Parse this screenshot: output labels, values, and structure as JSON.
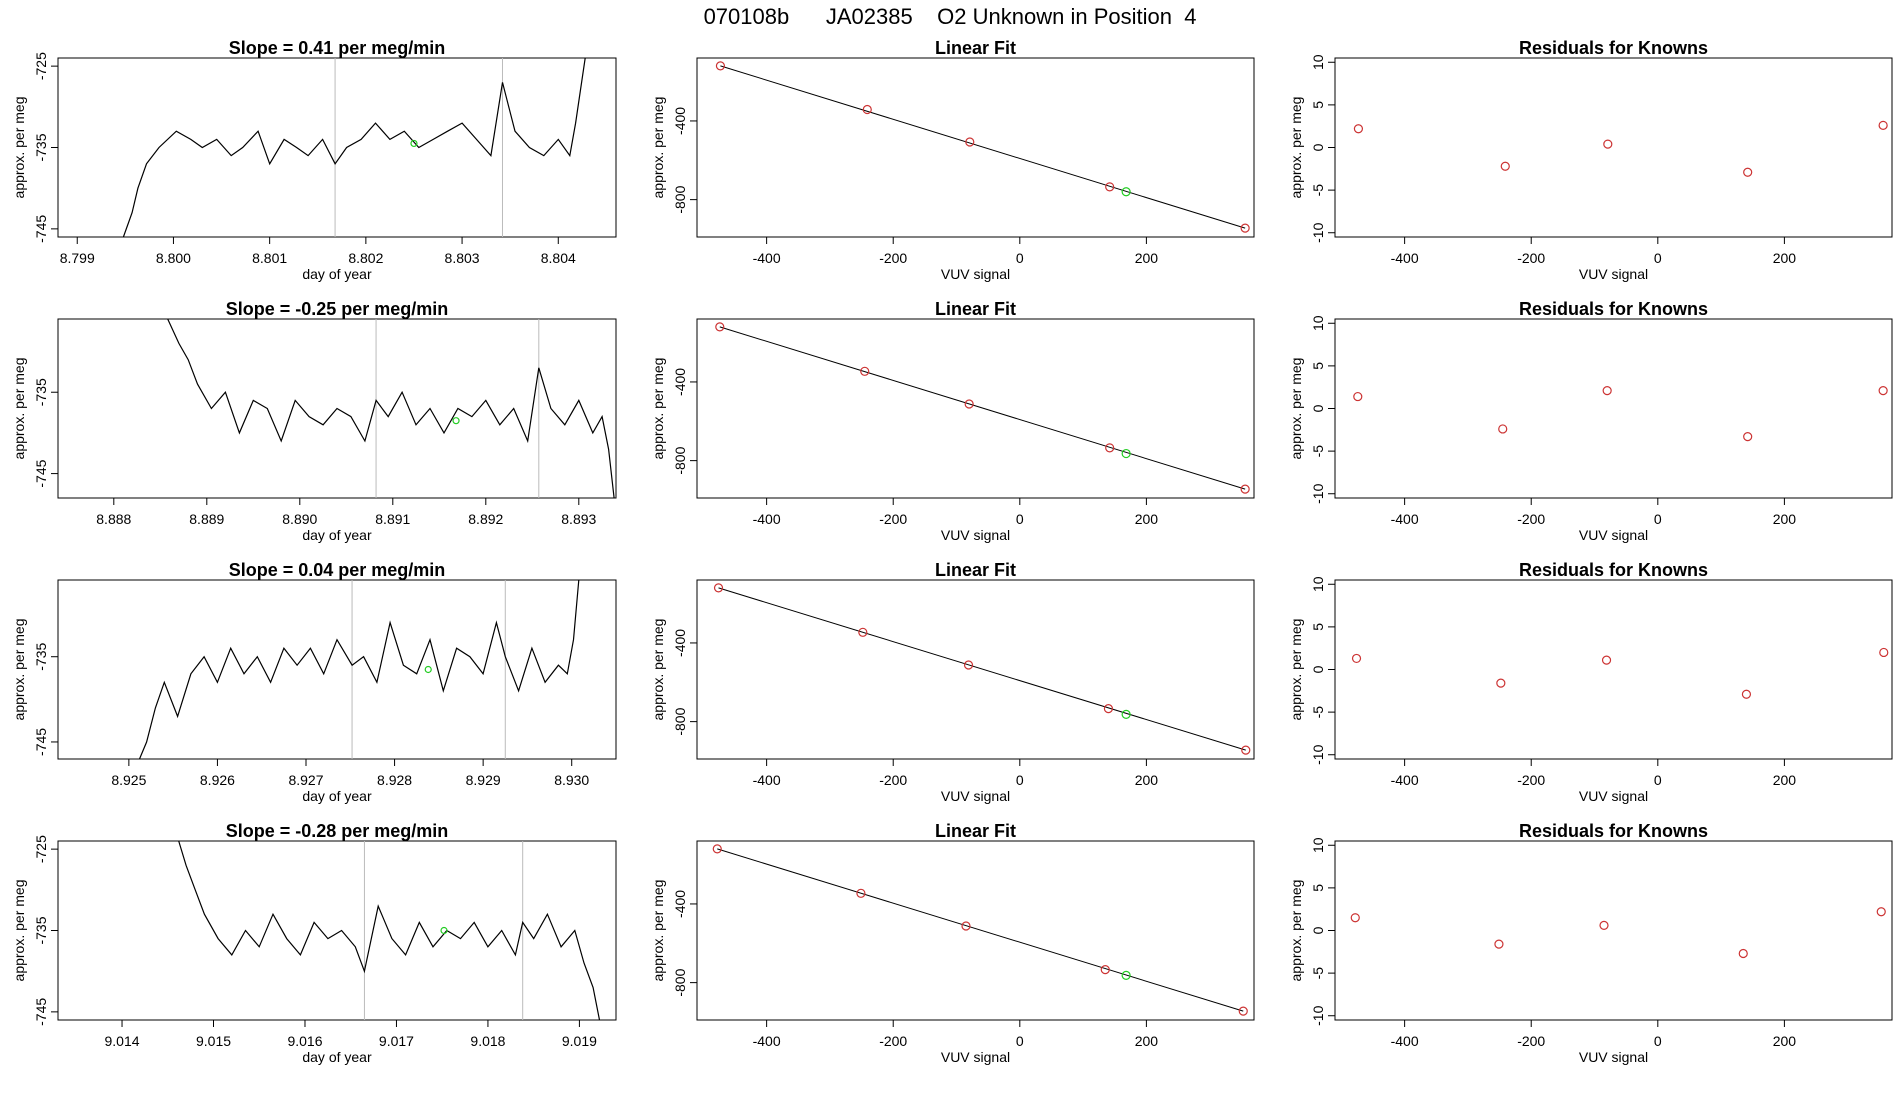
{
  "header": {
    "title": "070108b      JA02385    O2 Unknown in Position  4"
  },
  "colors": {
    "known": "#cc3333",
    "unknown": "#22cc22",
    "line": "#000000",
    "vline": "#bbbbbb"
  },
  "chart_data": [
    {
      "type": "line",
      "row": 1,
      "title": "Slope =  0.41  per meg/min",
      "xlabel": "day of year",
      "ylabel": "approx. per meg",
      "xticks": [
        "8.799",
        "8.800",
        "8.801",
        "8.802",
        "8.803",
        "8.804"
      ],
      "yticks": [
        "-725",
        "-735",
        "-745"
      ],
      "xlim": [
        8.7988,
        8.8046
      ],
      "ylim": [
        -746,
        -724
      ],
      "vlines": [
        8.80168,
        8.80342
      ],
      "series": [
        {
          "x": [
            8.79948,
            8.79957,
            8.79963,
            8.79972,
            8.79985,
            8.80003,
            8.80018,
            8.8003,
            8.80045,
            8.8006,
            8.80072,
            8.80088,
            8.801,
            8.80115,
            8.80128,
            8.8014,
            8.80155,
            8.80168,
            8.8018,
            8.80195,
            8.8021,
            8.80225,
            8.8024,
            8.80255,
            8.8027,
            8.80285,
            8.803,
            8.80315,
            8.8033,
            8.80342,
            8.80355,
            8.8037,
            8.80385,
            8.804,
            8.80412,
            8.80418,
            8.80423,
            8.80428
          ],
          "y": [
            -746,
            -743,
            -740,
            -737,
            -735,
            -733,
            -734,
            -735,
            -734,
            -736,
            -735,
            -733,
            -737,
            -734,
            -735,
            -736,
            -734,
            -737,
            -735,
            -734,
            -732,
            -734,
            -733,
            -735,
            -734,
            -733,
            -732,
            -734,
            -736,
            -727,
            -733,
            -735,
            -736,
            -734,
            -736,
            -732,
            -728,
            -724
          ]
        }
      ],
      "unknown_point": {
        "x": 8.8025,
        "y": -734.5
      }
    },
    {
      "type": "scatter",
      "row": 1,
      "title": "Linear Fit",
      "xlabel": "VUV signal",
      "ylabel": "approx. per meg",
      "xticks": [
        "-400",
        "-200",
        "0",
        "200"
      ],
      "yticks": [
        "-400",
        "-800"
      ],
      "xlim": [
        -510,
        370
      ],
      "ylim": [
        -990,
        -80
      ],
      "knowns": {
        "x": [
          -473,
          -241,
          -79,
          142,
          356
        ],
        "y": [
          -120,
          -342,
          -507,
          -735,
          -945
        ]
      },
      "unknown": {
        "x": 168,
        "y": -760
      },
      "fit": {
        "x": [
          -473,
          356
        ],
        "y": [
          -120,
          -945
        ]
      }
    },
    {
      "type": "scatter",
      "row": 1,
      "title": "Residuals for Knowns",
      "xlabel": "VUV signal",
      "ylabel": "approx. per meg",
      "xticks": [
        "-400",
        "-200",
        "0",
        "200"
      ],
      "yticks": [
        "10",
        "5",
        "0",
        "-5",
        "-10"
      ],
      "xlim": [
        -510,
        370
      ],
      "ylim": [
        -10.5,
        10.5
      ],
      "points": {
        "x": [
          -473,
          -241,
          -79,
          142,
          356
        ],
        "y": [
          2.2,
          -2.2,
          0.4,
          -2.9,
          2.6
        ]
      }
    },
    {
      "type": "line",
      "row": 2,
      "title": "Slope =  -0.25  per meg/min",
      "xlabel": "day of year",
      "ylabel": "approx. per meg",
      "xticks": [
        "8.888",
        "8.889",
        "8.890",
        "8.891",
        "8.892",
        "8.893"
      ],
      "yticks": [
        "-735",
        "-745"
      ],
      "xlim": [
        8.8874,
        8.8934
      ],
      "ylim": [
        -748,
        -726
      ],
      "vlines": [
        8.89082,
        8.89257
      ],
      "series": [
        {
          "x": [
            8.88858,
            8.8887,
            8.8888,
            8.8889,
            8.88905,
            8.8892,
            8.88935,
            8.8895,
            8.88965,
            8.8898,
            8.88995,
            8.8901,
            8.89025,
            8.8904,
            8.89055,
            8.8907,
            8.89082,
            8.89095,
            8.8911,
            8.89125,
            8.8914,
            8.89155,
            8.8917,
            8.89185,
            8.892,
            8.89215,
            8.8923,
            8.89245,
            8.89257,
            8.8927,
            8.89285,
            8.893,
            8.89315,
            8.89325,
            8.89332,
            8.89338
          ],
          "y": [
            -726,
            -729,
            -731,
            -734,
            -737,
            -735,
            -740,
            -736,
            -737,
            -741,
            -736,
            -738,
            -739,
            -737,
            -738,
            -741,
            -736,
            -738,
            -735,
            -739,
            -737,
            -740,
            -737,
            -738,
            -736,
            -739,
            -737,
            -741,
            -732,
            -737,
            -739,
            -736,
            -740,
            -738,
            -742,
            -748
          ]
        }
      ],
      "unknown_point": {
        "x": 8.89168,
        "y": -738.5
      }
    },
    {
      "type": "scatter",
      "row": 2,
      "title": "Linear Fit",
      "xlabel": "VUV signal",
      "ylabel": "approx. per meg",
      "xticks": [
        "-400",
        "-200",
        "0",
        "200"
      ],
      "yticks": [
        "-400",
        "-800"
      ],
      "xlim": [
        -510,
        370
      ],
      "ylim": [
        -990,
        -80
      ],
      "knowns": {
        "x": [
          -474,
          -245,
          -80,
          142,
          356
        ],
        "y": [
          -120,
          -346,
          -512,
          -735,
          -945
        ]
      },
      "unknown": {
        "x": 168,
        "y": -764
      },
      "fit": {
        "x": [
          -474,
          356
        ],
        "y": [
          -120,
          -945
        ]
      }
    },
    {
      "type": "scatter",
      "row": 2,
      "title": "Residuals for Knowns",
      "xlabel": "VUV signal",
      "ylabel": "approx. per meg",
      "xticks": [
        "-400",
        "-200",
        "0",
        "200"
      ],
      "yticks": [
        "10",
        "5",
        "0",
        "-5",
        "-10"
      ],
      "xlim": [
        -510,
        370
      ],
      "ylim": [
        -10.5,
        10.5
      ],
      "points": {
        "x": [
          -474,
          -245,
          -80,
          142,
          356
        ],
        "y": [
          1.4,
          -2.4,
          2.1,
          -3.3,
          2.1
        ]
      }
    },
    {
      "type": "line",
      "row": 3,
      "title": "Slope =  0.04  per meg/min",
      "xlabel": "day of year",
      "ylabel": "approx. per meg",
      "xticks": [
        "8.925",
        "8.926",
        "8.927",
        "8.928",
        "8.929",
        "8.930"
      ],
      "yticks": [
        "-735",
        "-745"
      ],
      "xlim": [
        8.9242,
        8.9305
      ],
      "ylim": [
        -747,
        -726
      ],
      "vlines": [
        8.92752,
        8.92925
      ],
      "series": [
        {
          "x": [
            8.92512,
            8.9252,
            8.9253,
            8.9254,
            8.92555,
            8.9257,
            8.92585,
            8.926,
            8.92615,
            8.9263,
            8.92645,
            8.9266,
            8.92675,
            8.9269,
            8.92705,
            8.9272,
            8.92735,
            8.92752,
            8.92765,
            8.9278,
            8.92795,
            8.9281,
            8.92825,
            8.9284,
            8.92855,
            8.9287,
            8.92885,
            8.929,
            8.92915,
            8.92925,
            8.9294,
            8.92955,
            8.9297,
            8.92985,
            8.92995,
            8.93002,
            8.93008
          ],
          "y": [
            -747,
            -745,
            -741,
            -738,
            -742,
            -737,
            -735,
            -738,
            -734,
            -737,
            -735,
            -738,
            -734,
            -736,
            -734,
            -737,
            -733,
            -736,
            -735,
            -738,
            -731,
            -736,
            -737,
            -733,
            -739,
            -734,
            -735,
            -737,
            -731,
            -735,
            -739,
            -734,
            -738,
            -736,
            -737,
            -733,
            -726
          ]
        }
      ],
      "unknown_point": {
        "x": 8.92838,
        "y": -736.5
      }
    },
    {
      "type": "scatter",
      "row": 3,
      "title": "Linear Fit",
      "xlabel": "VUV signal",
      "ylabel": "approx. per meg",
      "xticks": [
        "-400",
        "-200",
        "0",
        "200"
      ],
      "yticks": [
        "-400",
        "-800"
      ],
      "xlim": [
        -510,
        370
      ],
      "ylim": [
        -990,
        -80
      ],
      "knowns": {
        "x": [
          -476,
          -248,
          -81,
          140,
          357
        ],
        "y": [
          -120,
          -346,
          -512,
          -734,
          -945
        ]
      },
      "unknown": {
        "x": 168,
        "y": -763
      },
      "fit": {
        "x": [
          -476,
          357
        ],
        "y": [
          -120,
          -945
        ]
      }
    },
    {
      "type": "scatter",
      "row": 3,
      "title": "Residuals for Knowns",
      "xlabel": "VUV signal",
      "ylabel": "approx. per meg",
      "xticks": [
        "-400",
        "-200",
        "0",
        "200"
      ],
      "yticks": [
        "10",
        "5",
        "0",
        "-5",
        "-10"
      ],
      "xlim": [
        -510,
        370
      ],
      "ylim": [
        -10.5,
        10.5
      ],
      "points": {
        "x": [
          -476,
          -248,
          -81,
          140,
          357
        ],
        "y": [
          1.3,
          -1.6,
          1.1,
          -2.9,
          2.0
        ]
      }
    },
    {
      "type": "line",
      "row": 4,
      "title": "Slope =  -0.28  per meg/min",
      "xlabel": "day of year",
      "ylabel": "approx. per meg",
      "xticks": [
        "9.014",
        "9.015",
        "9.016",
        "9.017",
        "9.018",
        "9.019"
      ],
      "yticks": [
        "-725",
        "-735",
        "-745"
      ],
      "xlim": [
        9.0133,
        9.0194
      ],
      "ylim": [
        -746,
        -724
      ],
      "vlines": [
        9.01665,
        9.01838
      ],
      "series": [
        {
          "x": [
            9.01462,
            9.0147,
            9.0148,
            9.0149,
            9.01505,
            9.0152,
            9.01535,
            9.0155,
            9.01565,
            9.0158,
            9.01595,
            9.0161,
            9.01625,
            9.0164,
            9.01655,
            9.01665,
            9.0168,
            9.01695,
            9.0171,
            9.01725,
            9.0174,
            9.01755,
            9.0177,
            9.01785,
            9.018,
            9.01815,
            9.0183,
            9.01838,
            9.0185,
            9.01865,
            9.0188,
            9.01895,
            9.01905,
            9.01915,
            9.01922
          ],
          "y": [
            -724,
            -727,
            -730,
            -733,
            -736,
            -738,
            -735,
            -737,
            -733,
            -736,
            -738,
            -734,
            -736,
            -735,
            -737,
            -740,
            -732,
            -736,
            -738,
            -734,
            -737,
            -735,
            -736,
            -734,
            -737,
            -735,
            -738,
            -734,
            -736,
            -733,
            -737,
            -735,
            -739,
            -742,
            -746
          ]
        }
      ],
      "unknown_point": {
        "x": 9.01752,
        "y": -735
      }
    },
    {
      "type": "scatter",
      "row": 4,
      "title": "Linear Fit",
      "xlabel": "VUV signal",
      "ylabel": "approx. per meg",
      "xticks": [
        "-400",
        "-200",
        "0",
        "200"
      ],
      "yticks": [
        "-400",
        "-800"
      ],
      "xlim": [
        -510,
        370
      ],
      "ylim": [
        -990,
        -80
      ],
      "knowns": {
        "x": [
          -478,
          -251,
          -85,
          135,
          353
        ],
        "y": [
          -120,
          -346,
          -512,
          -734,
          -945
        ]
      },
      "unknown": {
        "x": 168,
        "y": -763
      },
      "fit": {
        "x": [
          -478,
          353
        ],
        "y": [
          -120,
          -945
        ]
      }
    },
    {
      "type": "scatter",
      "row": 4,
      "title": "Residuals for Knowns",
      "xlabel": "VUV signal",
      "ylabel": "approx. per meg",
      "xticks": [
        "-400",
        "-200",
        "0",
        "200"
      ],
      "yticks": [
        "10",
        "5",
        "0",
        "-5",
        "-10"
      ],
      "xlim": [
        -510,
        370
      ],
      "ylim": [
        -10.5,
        10.5
      ],
      "points": {
        "x": [
          -478,
          -251,
          -85,
          135,
          353
        ],
        "y": [
          1.5,
          -1.6,
          0.6,
          -2.7,
          2.2
        ]
      }
    }
  ]
}
